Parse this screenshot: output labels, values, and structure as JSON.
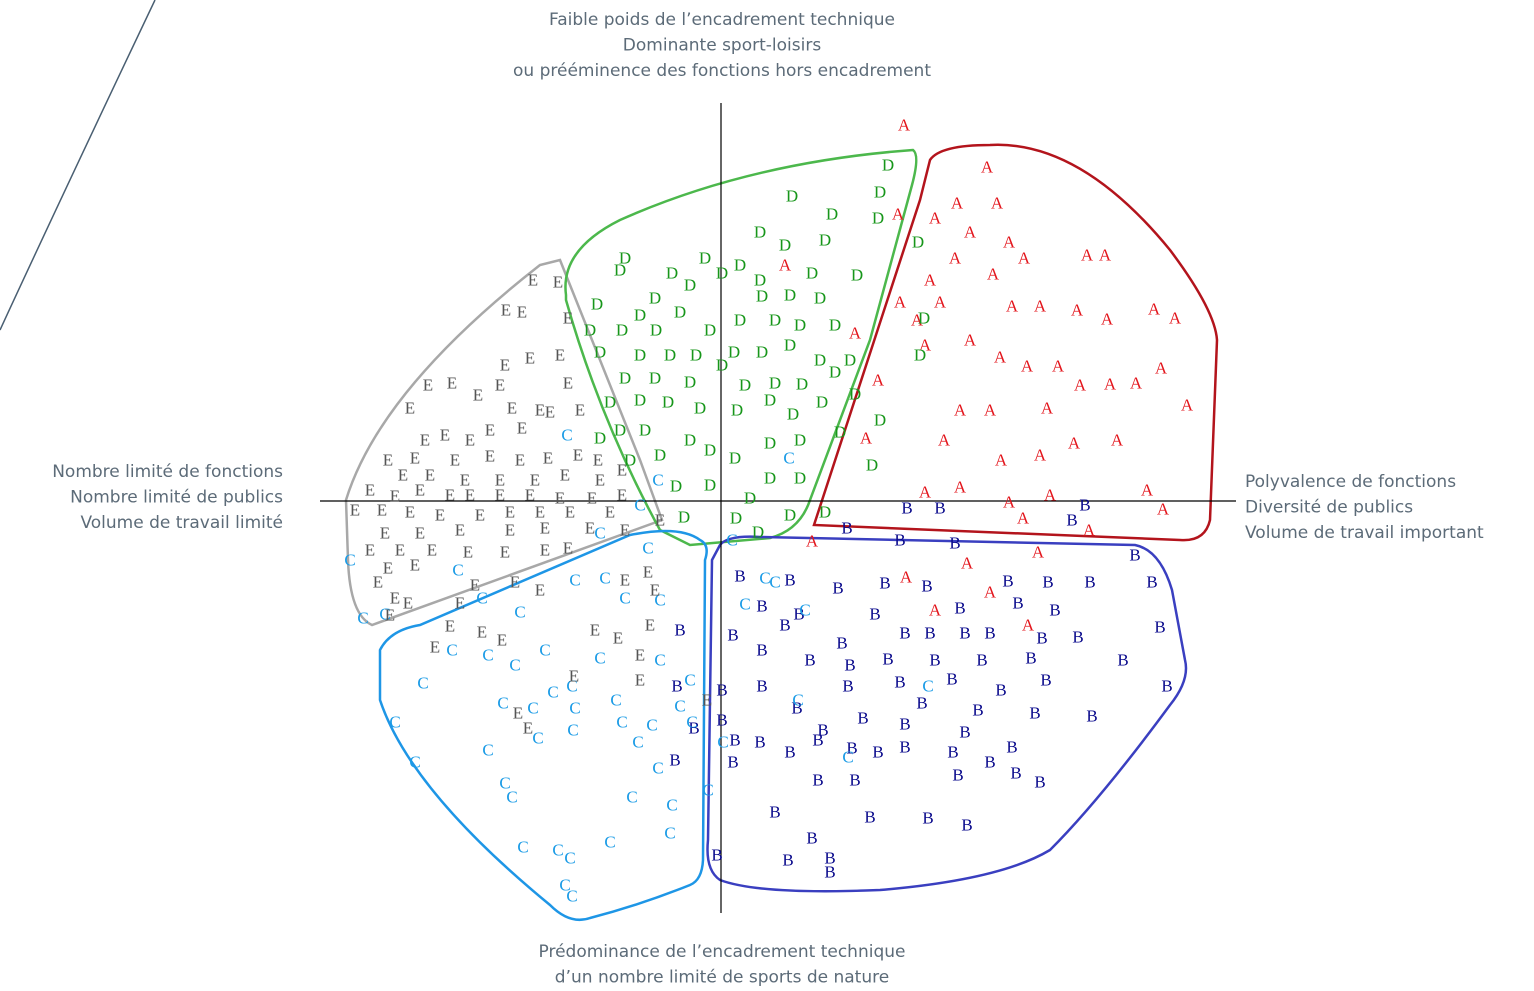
{
  "chart_data": {
    "type": "scatter",
    "axis_labels": {
      "top": [
        "Faible poids de l’encadrement technique",
        "Dominante sport-loisirs",
        "ou prééminence des fonctions hors encadrement"
      ],
      "bottom": [
        "Prédominance de l’encadrement technique",
        "d’un nombre limité de sports de nature"
      ],
      "left": [
        "Nombre limité de fonctions",
        "Nombre limité de publics",
        "Volume de travail limité"
      ],
      "right": [
        "Polyvalence de fonctions",
        "Diversité de publics",
        "Volume de travail important"
      ]
    },
    "xlim": [
      -4.01,
      5.15
    ],
    "ylim": [
      -4.12,
      3.98
    ],
    "series": [
      {
        "name": "A",
        "color": "#e3171e",
        "x": [
          1.83,
          2.66,
          1.77,
          2.14,
          2.36,
          2.76,
          2.49,
          2.88,
          3.03,
          3.66,
          3.84,
          2.34,
          2.09,
          2.72,
          1.79,
          2.19,
          2.91,
          3.19,
          3.56,
          3.86,
          4.33,
          4.54,
          1.96,
          2.04,
          2.49,
          2.79,
          3.06,
          3.37,
          3.59,
          3.89,
          4.15,
          4.4,
          4.66,
          2.39,
          2.69,
          3.26,
          3.53,
          3.96,
          2.23,
          2.8,
          3.19,
          2.04,
          2.39,
          2.88,
          3.29,
          4.26,
          4.42,
          3.02,
          3.68,
          3.17,
          2.46,
          2.69,
          3.07,
          2.14,
          1.45,
          1.57,
          0.91,
          1.85,
          0.64,
          1.34
        ],
        "y": [
          3.76,
          3.34,
          2.87,
          2.83,
          2.98,
          2.98,
          2.69,
          2.59,
          2.43,
          2.46,
          2.46,
          2.43,
          2.21,
          2.27,
          1.99,
          1.99,
          1.95,
          1.95,
          1.91,
          1.82,
          1.92,
          1.83,
          1.81,
          1.56,
          1.61,
          1.44,
          1.35,
          1.35,
          1.16,
          1.17,
          1.18,
          1.33,
          0.96,
          0.91,
          0.91,
          0.93,
          0.58,
          0.61,
          0.61,
          0.41,
          0.46,
          0.09,
          0.14,
          -0.01,
          0.06,
          0.11,
          -0.08,
          -0.17,
          -0.29,
          -0.51,
          -0.62,
          -0.91,
          -1.24,
          -1.09,
          0.63,
          1.21,
          -0.4,
          -0.76,
          2.36,
          1.68
        ]
      },
      {
        "name": "B",
        "color": "#0a0a8c",
        "x": [
          3.64,
          1.86,
          2.19,
          3.51,
          1.26,
          1.79,
          2.34,
          4.14,
          0.19,
          0.69,
          1.17,
          1.64,
          2.06,
          2.87,
          3.27,
          3.69,
          4.31,
          2.39,
          2.97,
          3.34,
          0.41,
          0.78,
          1.54,
          -0.41,
          0.12,
          0.64,
          1.21,
          1.84,
          2.09,
          2.44,
          2.69,
          3.21,
          3.57,
          4.39,
          0.41,
          0.89,
          1.29,
          1.67,
          2.14,
          2.61,
          3.1,
          4.02,
          -0.44,
          0.01,
          0.41,
          1.27,
          1.79,
          2.31,
          2.8,
          3.25,
          4.46,
          0.76,
          1.42,
          2.01,
          2.57,
          3.14,
          3.71,
          -0.27,
          1.02,
          1.84,
          2.44,
          0.14,
          0.39,
          0.97,
          1.31,
          1.84,
          2.91,
          0.12,
          0.69,
          1.57,
          2.32,
          2.69,
          -0.46,
          0.97,
          1.34,
          2.37,
          2.95,
          3.19,
          0.54,
          1.49,
          2.07,
          2.46,
          0.91,
          -0.04,
          0.67,
          1.09,
          1.09,
          0.01
        ],
        "y": [
          -0.04,
          -0.07,
          -0.07,
          -0.19,
          -0.27,
          -0.39,
          -0.42,
          -0.54,
          -0.75,
          -0.79,
          -0.87,
          -0.82,
          -0.85,
          -0.8,
          -0.81,
          -0.81,
          -0.81,
          -1.07,
          -1.02,
          -1.09,
          -1.05,
          -1.13,
          -1.13,
          -1.29,
          -1.34,
          -1.24,
          -1.42,
          -1.32,
          -1.32,
          -1.32,
          -1.32,
          -1.37,
          -1.36,
          -1.26,
          -1.49,
          -1.59,
          -1.64,
          -1.58,
          -1.59,
          -1.59,
          -1.57,
          -1.59,
          -1.85,
          -1.89,
          -1.85,
          -1.85,
          -1.81,
          -1.78,
          -1.89,
          -1.79,
          -1.85,
          -2.07,
          -2.17,
          -2.02,
          -2.09,
          -2.12,
          -2.15,
          -2.27,
          -2.29,
          -2.23,
          -2.31,
          -2.39,
          -2.41,
          -2.39,
          -2.47,
          -2.46,
          -2.46,
          -2.61,
          -2.51,
          -2.51,
          -2.51,
          -2.61,
          -2.59,
          -2.79,
          -2.79,
          -2.74,
          -2.72,
          -2.81,
          -3.11,
          -3.16,
          -3.17,
          -3.24,
          -3.37,
          -3.54,
          -3.59,
          -3.57,
          -3.71,
          -2.19
        ]
      },
      {
        "name": "C",
        "color": "#1a9be6",
        "x": [
          -1.54,
          -0.63,
          -0.81,
          -1.21,
          -0.73,
          -3.71,
          -2.63,
          -1.46,
          -3.58,
          -3.36,
          -2.39,
          -2.01,
          -1.16,
          -0.96,
          -0.61,
          -2.69,
          -2.33,
          -2.06,
          -1.76,
          -1.21,
          -0.61,
          -2.98,
          -1.68,
          -1.49,
          -1.05,
          -0.41,
          -0.31,
          -2.18,
          -1.88,
          -1.46,
          -3.26,
          -1.83,
          -1.48,
          -0.99,
          -0.69,
          -0.29,
          -0.83,
          -2.33,
          -3.06,
          -0.63,
          -2.16,
          -2.09,
          -0.89,
          -0.49,
          -0.13,
          0.02,
          -0.51,
          -1.98,
          -1.63,
          -1.51,
          -1.11,
          -1.56,
          -1.49,
          0.44,
          0.54,
          0.24,
          0.84,
          0.77,
          1.27,
          2.07,
          0.68,
          0.11
        ],
        "y": [
          0.66,
          0.21,
          -0.04,
          -0.32,
          -0.47,
          -0.59,
          -0.69,
          -0.79,
          -1.17,
          -1.13,
          -0.97,
          -1.11,
          -0.77,
          -0.97,
          -0.99,
          -1.49,
          -1.54,
          -1.64,
          -1.49,
          -1.57,
          -1.59,
          -1.82,
          -1.91,
          -1.85,
          -1.99,
          -2.05,
          -1.79,
          -2.02,
          -2.07,
          -2.07,
          -2.21,
          -2.37,
          -2.29,
          -2.21,
          -2.24,
          -2.21,
          -2.41,
          -2.49,
          -2.61,
          -2.67,
          -2.82,
          -2.96,
          -2.96,
          -3.04,
          -2.89,
          -2.41,
          -3.32,
          -3.46,
          -3.49,
          -3.57,
          -3.41,
          -3.84,
          -3.95,
          -0.77,
          -0.81,
          -1.03,
          -1.09,
          -1.99,
          -2.56,
          -1.85,
          0.43,
          -0.39
        ]
      },
      {
        "name": "D",
        "color": "#17961a",
        "x": [
          1.67,
          0.71,
          1.59,
          1.11,
          1.57,
          0.39,
          1.04,
          0.64,
          -0.96,
          -1.01,
          -0.16,
          0.19,
          -0.49,
          -0.31,
          0.01,
          0.39,
          0.91,
          1.36,
          1.97,
          0.41,
          0.69,
          0.99,
          -0.66,
          -1.24,
          -0.81,
          -0.41,
          0.19,
          0.54,
          0.79,
          1.14,
          -1.31,
          -0.99,
          -0.65,
          -0.11,
          -1.21,
          -0.81,
          -0.51,
          -0.25,
          0.13,
          0.41,
          0.69,
          0.99,
          1.29,
          -0.96,
          -0.66,
          -0.31,
          0.01,
          0.24,
          0.54,
          0.81,
          1.14,
          -1.11,
          -0.81,
          -0.53,
          -0.21,
          0.16,
          0.49,
          0.72,
          1.01,
          1.34,
          -1.01,
          -0.76,
          -0.31,
          -0.11,
          0.49,
          0.79,
          1.19,
          1.59,
          -0.61,
          0.14,
          0.49,
          0.79,
          -0.45,
          -0.11,
          0.29,
          -0.37,
          0.15,
          0.69,
          1.04,
          0.37,
          1.51,
          1.99,
          2.03,
          -1.21,
          -0.91
        ],
        "y": [
          3.36,
          3.05,
          3.09,
          2.87,
          2.83,
          2.69,
          2.61,
          2.56,
          2.43,
          2.31,
          2.43,
          2.36,
          2.28,
          2.16,
          2.28,
          2.21,
          2.28,
          2.26,
          2.59,
          2.05,
          2.06,
          2.03,
          2.03,
          1.97,
          1.86,
          1.89,
          1.81,
          1.81,
          1.76,
          1.76,
          1.71,
          1.71,
          1.71,
          1.71,
          1.49,
          1.46,
          1.46,
          1.46,
          1.49,
          1.49,
          1.56,
          1.41,
          1.41,
          1.23,
          1.23,
          1.19,
          1.36,
          1.16,
          1.18,
          1.17,
          1.29,
          0.99,
          1.01,
          0.99,
          0.93,
          0.91,
          1.01,
          0.87,
          0.99,
          1.07,
          0.71,
          0.71,
          0.61,
          0.51,
          0.58,
          0.61,
          0.69,
          0.81,
          0.46,
          0.43,
          0.23,
          0.23,
          0.15,
          0.16,
          0.03,
          -0.16,
          -0.17,
          -0.14,
          -0.11,
          -0.31,
          0.36,
          1.46,
          1.83,
          0.63,
          0.41
        ]
      },
      {
        "name": "E",
        "color": "#555555",
        "x": [
          -1.88,
          -1.63,
          -2.15,
          -1.99,
          -1.53,
          -1.91,
          -1.61,
          -2.16,
          -2.69,
          -2.93,
          -2.43,
          -2.21,
          -2.09,
          -1.81,
          -1.53,
          -3.11,
          -2.76,
          -2.51,
          -2.31,
          -1.99,
          -1.71,
          -1.41,
          -2.96,
          -3.33,
          -3.06,
          -2.66,
          -2.31,
          -2.01,
          -1.73,
          -1.43,
          -1.23,
          -3.18,
          -2.91,
          -2.56,
          -2.21,
          -1.86,
          -1.56,
          -1.21,
          -3.51,
          -3.26,
          -3.01,
          -2.71,
          -2.51,
          -2.21,
          -1.91,
          -1.61,
          -1.29,
          -0.99,
          -3.39,
          -3.11,
          -2.81,
          -2.41,
          -2.11,
          -1.81,
          -1.51,
          -1.11,
          -3.66,
          -3.36,
          -3.01,
          -2.61,
          -2.11,
          -1.76,
          -1.31,
          -0.96,
          -3.51,
          -3.21,
          -2.89,
          -2.53,
          -2.16,
          -1.76,
          -1.53,
          -3.33,
          -3.06,
          -2.46,
          -2.06,
          -1.81,
          -0.96,
          -0.73,
          -3.43,
          -3.26,
          -3.13,
          -2.61,
          -0.66,
          -3.31,
          -2.71,
          -2.39,
          -2.19,
          -1.26,
          -1.03,
          -0.71,
          -2.86,
          -0.81,
          -0.81,
          -1.47,
          -2.03,
          -1.93,
          -0.14,
          -0.61,
          -0.99
        ],
        "y": [
          2.21,
          2.19,
          1.91,
          1.89,
          1.83,
          1.43,
          1.46,
          1.36,
          1.18,
          1.16,
          1.06,
          1.16,
          0.93,
          0.91,
          1.18,
          0.93,
          0.66,
          0.61,
          0.71,
          0.73,
          0.89,
          0.91,
          0.61,
          0.41,
          0.43,
          0.41,
          0.45,
          0.41,
          0.43,
          0.46,
          0.41,
          0.26,
          0.26,
          0.21,
          0.21,
          0.21,
          0.26,
          0.21,
          0.11,
          0.05,
          0.11,
          0.06,
          0.06,
          0.06,
          0.06,
          0.03,
          0.03,
          0.06,
          -0.09,
          -0.11,
          -0.14,
          -0.14,
          -0.11,
          -0.11,
          -0.11,
          -0.11,
          -0.09,
          -0.32,
          -0.32,
          -0.29,
          -0.29,
          -0.27,
          -0.27,
          -0.29,
          -0.49,
          -0.49,
          -0.49,
          -0.51,
          -0.51,
          -0.49,
          -0.47,
          -0.67,
          -0.64,
          -0.84,
          -0.81,
          -0.89,
          -0.79,
          -0.71,
          -0.81,
          -0.97,
          -1.02,
          -1.02,
          -0.89,
          -1.14,
          -1.25,
          -1.31,
          -1.39,
          -1.29,
          -1.37,
          -1.24,
          -1.46,
          -1.54,
          -1.79,
          -1.75,
          -2.12,
          -2.27,
          -1.99,
          -0.19,
          0.31
        ]
      }
    ]
  }
}
